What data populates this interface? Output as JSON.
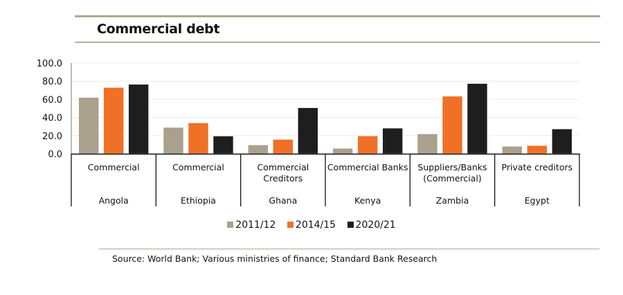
{
  "chart_data": {
    "type": "bar",
    "title": "Commercial debt",
    "xlabel": "",
    "ylabel": "",
    "ylim": [
      0,
      100
    ],
    "yticks": [
      "0.0",
      "20.0",
      "40.0",
      "60.0",
      "80.0",
      "100.0"
    ],
    "grid": true,
    "legend_position": "bottom-center",
    "categories": [
      {
        "country": "Angola",
        "creditor": "Commercial"
      },
      {
        "country": "Ethiopia",
        "creditor": "Commercial"
      },
      {
        "country": "Ghana",
        "creditor": "Commercial Creditors"
      },
      {
        "country": "Kenya",
        "creditor": "Commercial Banks"
      },
      {
        "country": "Zambia",
        "creditor": "Suppliers/Banks (Commercial)"
      },
      {
        "country": "Egypt",
        "creditor": "Private creditors"
      }
    ],
    "category_label_lines": [
      [
        "Commercial"
      ],
      [
        "Commercial"
      ],
      [
        "Commercial",
        "Creditors"
      ],
      [
        "Commercial Banks"
      ],
      [
        "Suppliers/Banks",
        "(Commercial)"
      ],
      [
        "Private creditors"
      ]
    ],
    "series": [
      {
        "name": "2011/12",
        "color": "#ABA08B",
        "values": [
          62.0,
          29.0,
          9.7,
          5.9,
          21.9,
          8.2
        ]
      },
      {
        "name": "2014/15",
        "color": "#F07026",
        "values": [
          73.0,
          34.0,
          15.8,
          19.6,
          63.4,
          9.0
        ]
      },
      {
        "name": "2020/21",
        "color": "#1E1E1E",
        "values": [
          76.5,
          19.5,
          50.7,
          28.2,
          77.4,
          27.3
        ]
      }
    ]
  },
  "source": "Source:  World Bank; Various ministries of finance; Standard Bank Research"
}
